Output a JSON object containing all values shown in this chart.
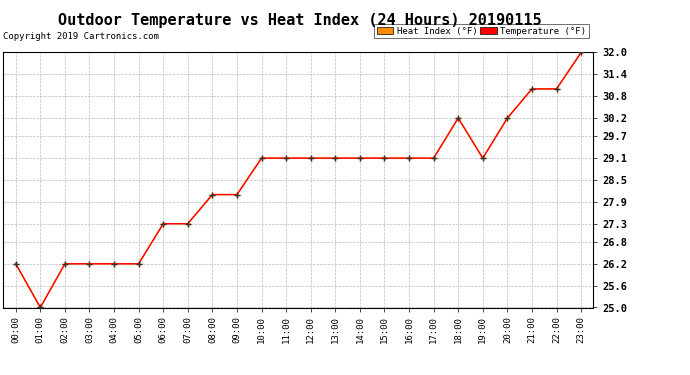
{
  "title": "Outdoor Temperature vs Heat Index (24 Hours) 20190115",
  "copyright": "Copyright 2019 Cartronics.com",
  "x_labels": [
    "00:00",
    "01:00",
    "02:00",
    "03:00",
    "04:00",
    "05:00",
    "06:00",
    "07:00",
    "08:00",
    "09:00",
    "10:00",
    "11:00",
    "12:00",
    "13:00",
    "14:00",
    "15:00",
    "16:00",
    "17:00",
    "18:00",
    "19:00",
    "20:00",
    "21:00",
    "22:00",
    "23:00"
  ],
  "temperature": [
    26.2,
    25.0,
    26.2,
    26.2,
    26.2,
    26.2,
    27.3,
    27.3,
    28.1,
    28.1,
    29.1,
    29.1,
    29.1,
    29.1,
    29.1,
    29.1,
    29.1,
    29.1,
    30.2,
    29.1,
    30.2,
    31.0,
    31.0,
    32.0
  ],
  "heat_index": [
    26.2,
    25.0,
    26.2,
    26.2,
    26.2,
    26.2,
    27.3,
    27.3,
    28.1,
    28.1,
    29.1,
    29.1,
    29.1,
    29.1,
    29.1,
    29.1,
    29.1,
    29.1,
    30.2,
    29.1,
    30.2,
    31.0,
    31.0,
    32.0
  ],
  "temp_color": "#FF0000",
  "heat_color": "#FF8C00",
  "ylim_min": 25.0,
  "ylim_max": 32.0,
  "yticks": [
    25.0,
    25.6,
    26.2,
    26.8,
    27.3,
    27.9,
    28.5,
    29.1,
    29.7,
    30.2,
    30.8,
    31.4,
    32.0
  ],
  "background_color": "#FFFFFF",
  "plot_bg_color": "#FFFFFF",
  "grid_color": "#BBBBBB",
  "title_fontsize": 11,
  "legend_heat_bg": "#FF8C00",
  "legend_temp_bg": "#FF0000",
  "legend_text_color": "#000000",
  "marker_color_temp": "#333333",
  "marker_color_heat": "#333333"
}
